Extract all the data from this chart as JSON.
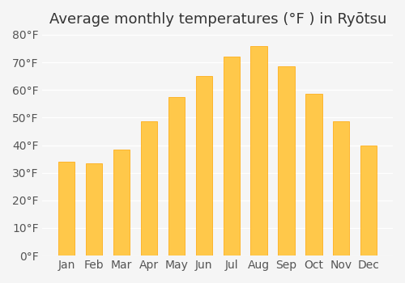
{
  "title": "Average monthly temperatures (°F ) in Ryōtsu",
  "months": [
    "Jan",
    "Feb",
    "Mar",
    "Apr",
    "May",
    "Jun",
    "Jul",
    "Aug",
    "Sep",
    "Oct",
    "Nov",
    "Dec"
  ],
  "values": [
    34,
    33.5,
    38.5,
    48.5,
    57.5,
    65,
    72,
    76,
    68.5,
    58.5,
    48.5,
    40
  ],
  "bar_color": "#FFA500",
  "bar_edge_color": "#FFA500",
  "background_color": "#f5f5f5",
  "grid_color": "#ffffff",
  "ylim": [
    0,
    80
  ],
  "yticks": [
    0,
    10,
    20,
    30,
    40,
    50,
    60,
    70,
    80
  ],
  "title_fontsize": 13,
  "tick_fontsize": 10
}
